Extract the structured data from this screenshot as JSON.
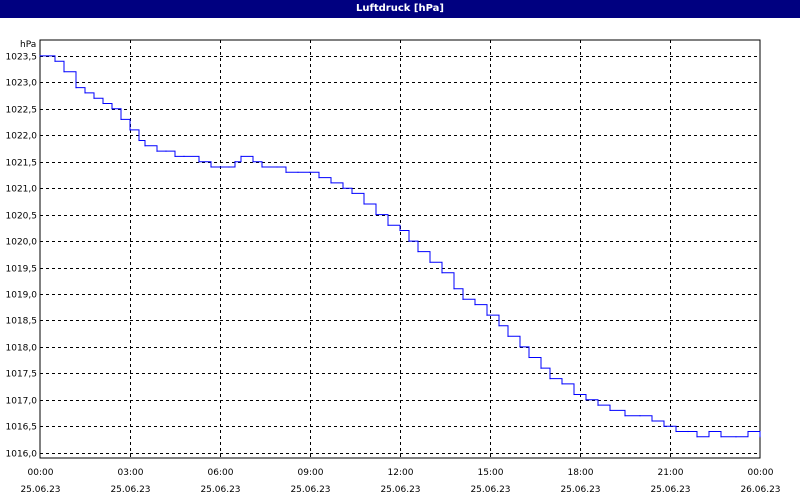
{
  "chart_data": {
    "type": "line",
    "title": "Luftdruck [hPa]",
    "ylabel": "hPa",
    "ylim": [
      1015.9,
      1023.8
    ],
    "yticks": [
      "1016,0",
      "1016,5",
      "1017,0",
      "1017,5",
      "1018,0",
      "1018,5",
      "1019,0",
      "1019,5",
      "1020,0",
      "1020,5",
      "1021,0",
      "1021,5",
      "1022,0",
      "1022,5",
      "1023,0",
      "1023,5"
    ],
    "xlim": [
      0,
      24
    ],
    "xticks": [
      {
        "time": "00:00",
        "date": "25.06.23"
      },
      {
        "time": "03:00",
        "date": "25.06.23"
      },
      {
        "time": "06:00",
        "date": "25.06.23"
      },
      {
        "time": "09:00",
        "date": "25.06.23"
      },
      {
        "time": "12:00",
        "date": "25.06.23"
      },
      {
        "time": "15:00",
        "date": "25.06.23"
      },
      {
        "time": "18:00",
        "date": "25.06.23"
      },
      {
        "time": "21:00",
        "date": "25.06.23"
      },
      {
        "time": "00:00",
        "date": "26.06.23"
      }
    ],
    "grid": true,
    "series": [
      {
        "color": "#0000ff",
        "x": [
          0,
          0.5,
          0.8,
          1.2,
          1.5,
          1.8,
          2.1,
          2.4,
          2.7,
          3.0,
          3.3,
          3.5,
          3.9,
          4.2,
          4.5,
          4.8,
          5.3,
          5.7,
          6.0,
          6.3,
          6.5,
          6.7,
          7.1,
          7.4,
          7.9,
          8.2,
          8.6,
          9.0,
          9.3,
          9.7,
          10.1,
          10.4,
          10.8,
          11.2,
          11.6,
          12.0,
          12.3,
          12.6,
          13.0,
          13.4,
          13.8,
          14.1,
          14.5,
          14.9,
          15.3,
          15.6,
          16.0,
          16.3,
          16.7,
          17.0,
          17.4,
          17.8,
          18.2,
          18.6,
          19.0,
          19.5,
          20.0,
          20.4,
          20.8,
          21.2,
          21.6,
          21.9,
          22.3,
          22.7,
          23.2,
          23.6,
          24.0
        ],
        "y": [
          1023.5,
          1023.4,
          1023.2,
          1022.9,
          1022.8,
          1022.7,
          1022.6,
          1022.5,
          1022.3,
          1022.1,
          1021.9,
          1021.8,
          1021.7,
          1021.7,
          1021.6,
          1021.6,
          1021.5,
          1021.4,
          1021.4,
          1021.4,
          1021.5,
          1021.6,
          1021.5,
          1021.4,
          1021.4,
          1021.3,
          1021.3,
          1021.3,
          1021.2,
          1021.1,
          1021.0,
          1020.9,
          1020.7,
          1020.5,
          1020.3,
          1020.2,
          1020.0,
          1019.8,
          1019.6,
          1019.4,
          1019.1,
          1018.9,
          1018.8,
          1018.6,
          1018.4,
          1018.2,
          1018.0,
          1017.8,
          1017.6,
          1017.4,
          1017.3,
          1017.1,
          1017.0,
          1016.9,
          1016.8,
          1016.7,
          1016.7,
          1016.6,
          1016.5,
          1016.4,
          1016.4,
          1016.3,
          1016.4,
          1016.3,
          1016.3,
          1016.4,
          1016.3
        ]
      }
    ]
  }
}
